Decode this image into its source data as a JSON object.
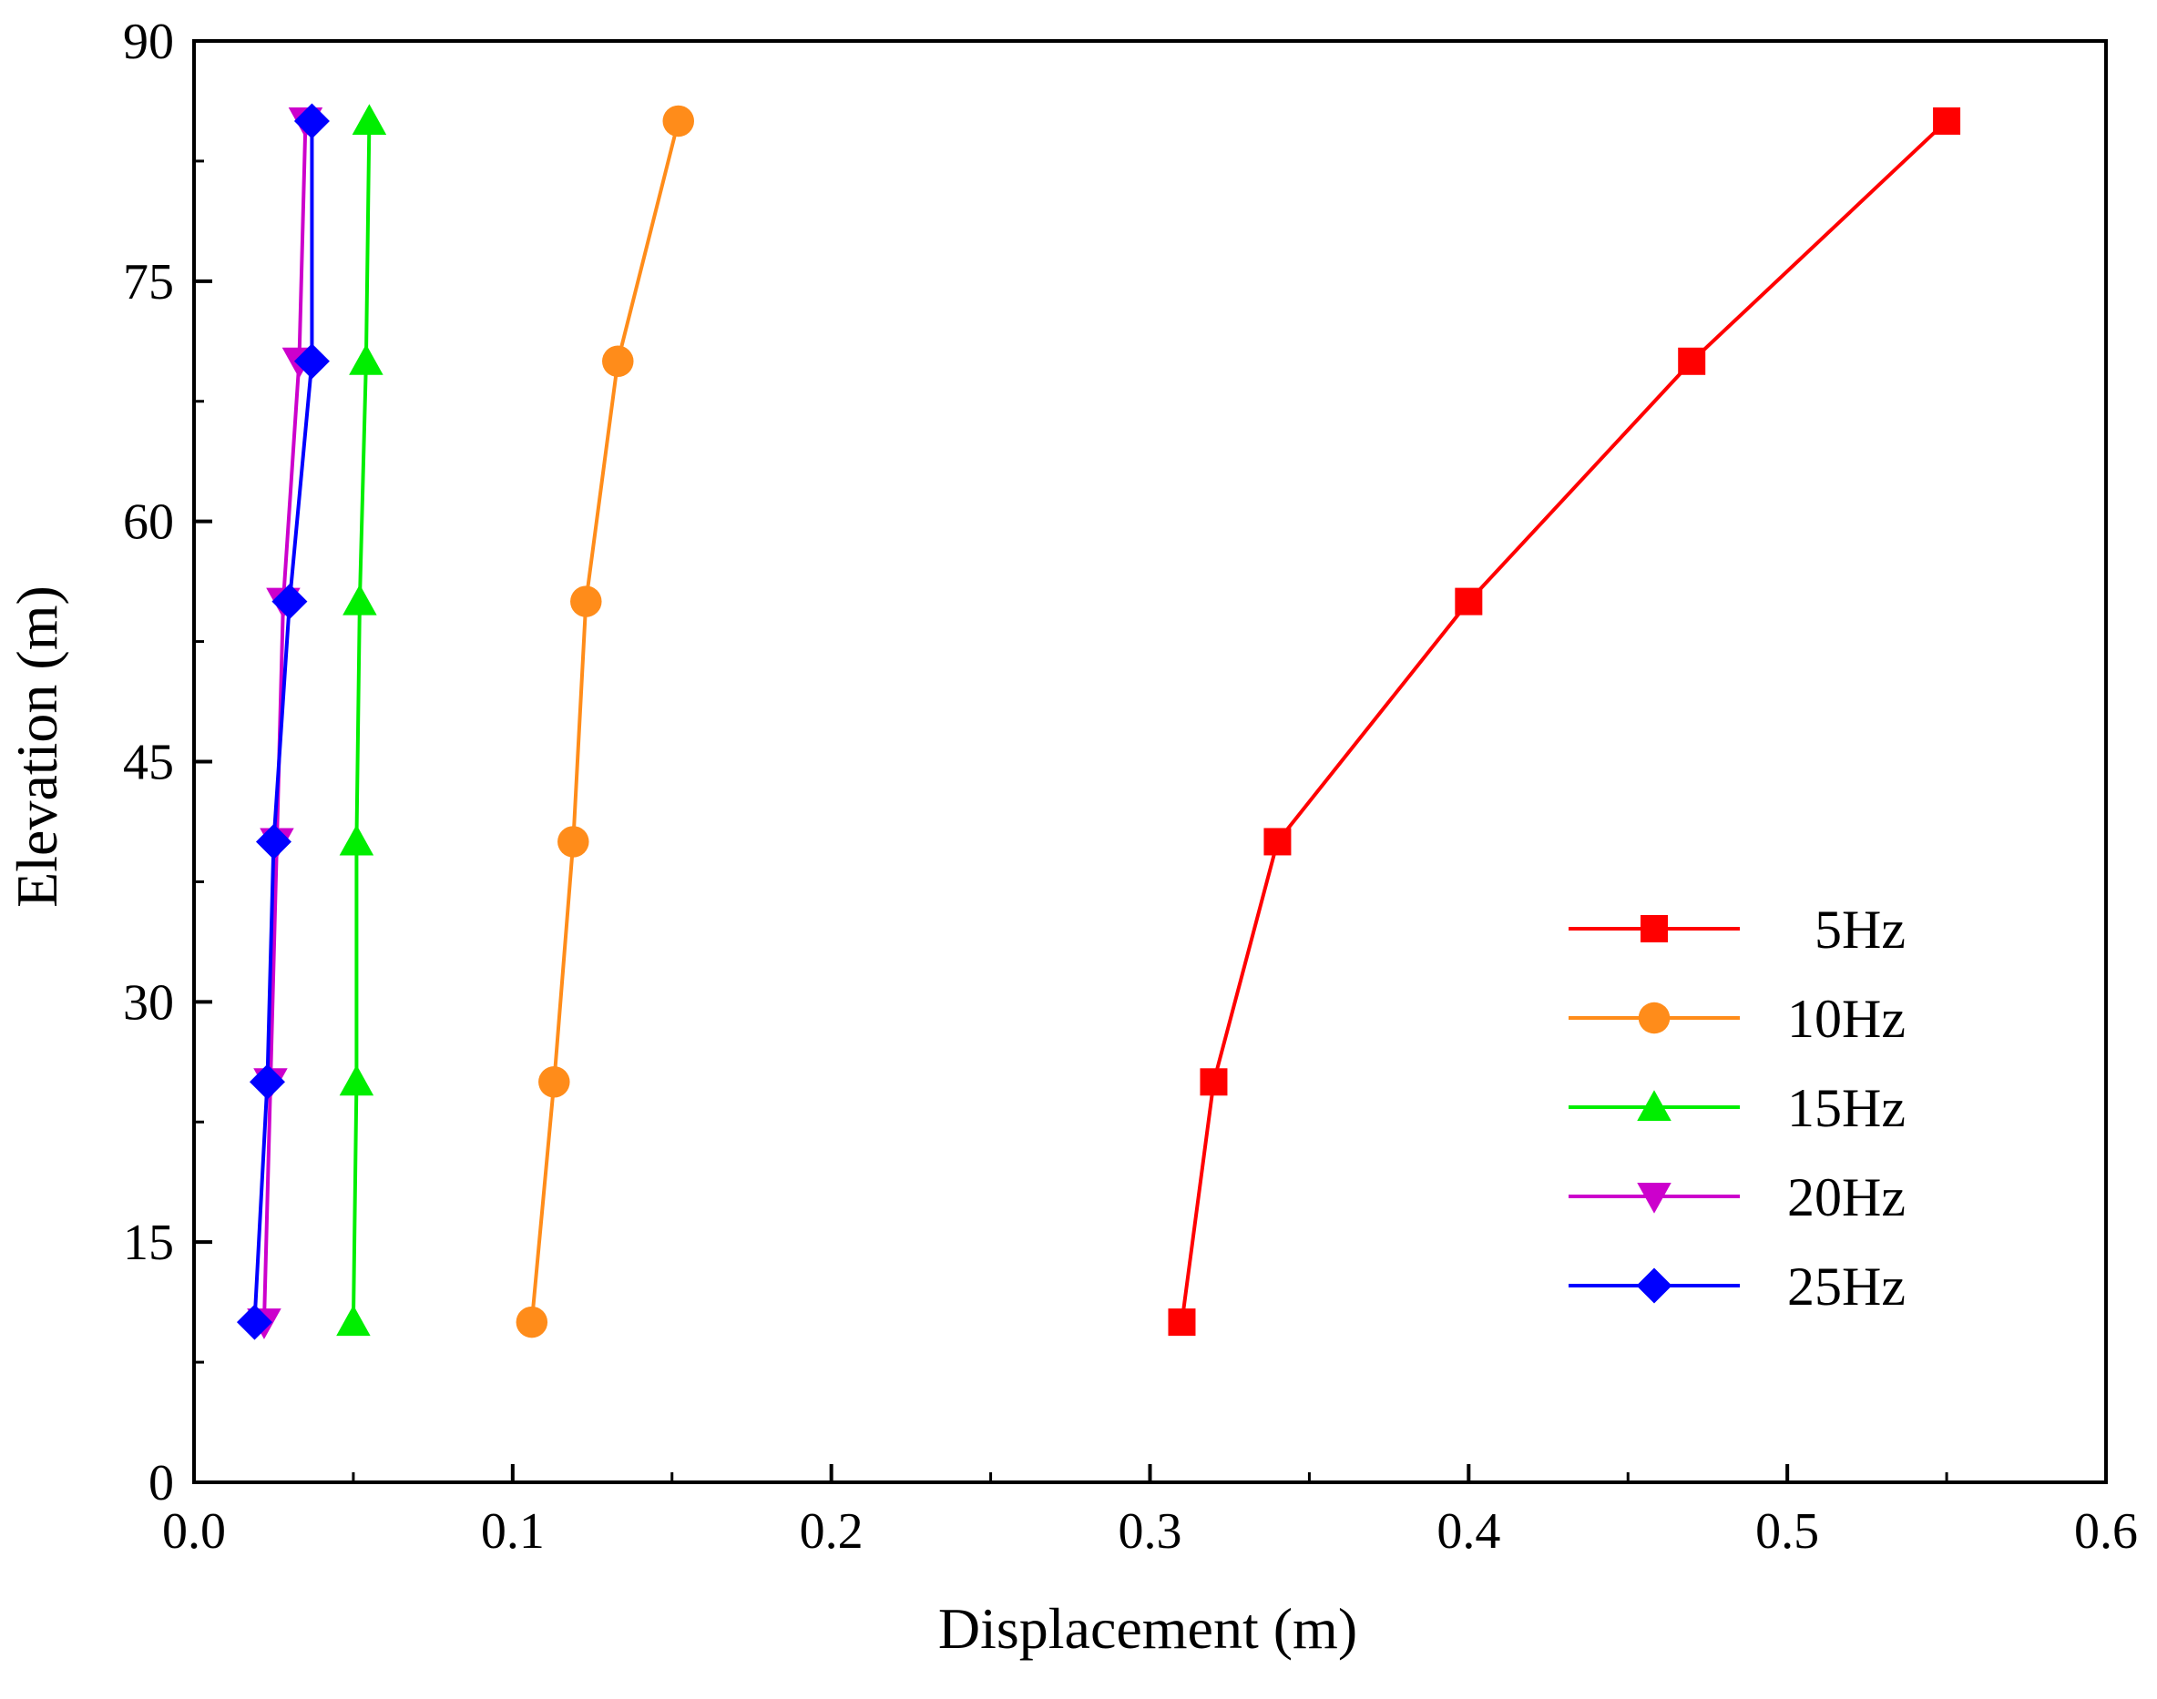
{
  "chart_data": {
    "type": "line",
    "title": "",
    "xlabel": "Displacement (m)",
    "ylabel": "Elevation (m)",
    "xlim": [
      0.0,
      0.6
    ],
    "ylim": [
      0,
      90
    ],
    "xticks": [
      "0.0",
      "0.1",
      "0.2",
      "0.3",
      "0.4",
      "0.5",
      "0.6"
    ],
    "yticks": [
      "0",
      "15",
      "30",
      "45",
      "60",
      "75",
      "90"
    ],
    "grid": false,
    "legend_position": "lower-right",
    "y": [
      10,
      25,
      40,
      55,
      70,
      85
    ],
    "series": [
      {
        "name": "5Hz",
        "color": "#ff0000",
        "marker": "square",
        "x": [
          0.31,
          0.32,
          0.34,
          0.4,
          0.47,
          0.55
        ]
      },
      {
        "name": "10Hz",
        "color": "#ff8c1a",
        "marker": "circle",
        "x": [
          0.106,
          0.113,
          0.119,
          0.123,
          0.133,
          0.152
        ]
      },
      {
        "name": "15Hz",
        "color": "#00ee00",
        "marker": "triangle-up",
        "x": [
          0.05,
          0.051,
          0.051,
          0.052,
          0.054,
          0.055
        ]
      },
      {
        "name": "20Hz",
        "color": "#cc00cc",
        "marker": "triangle-down",
        "x": [
          0.022,
          0.024,
          0.026,
          0.028,
          0.033,
          0.035
        ]
      },
      {
        "name": "25Hz",
        "color": "#0000ff",
        "marker": "diamond",
        "x": [
          0.019,
          0.023,
          0.025,
          0.03,
          0.037,
          0.037
        ]
      }
    ]
  }
}
